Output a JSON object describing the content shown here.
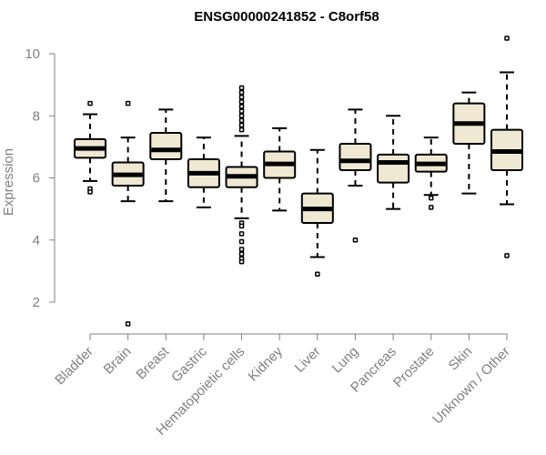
{
  "chart_data": {
    "type": "boxplot",
    "title": "ENSG00000241852 - C8orf58",
    "ylabel": "Expression",
    "xlabel": "",
    "ylim": [
      1,
      10.5
    ],
    "yticks": [
      2,
      4,
      6,
      8,
      10
    ],
    "box_fill": "#efe8d2",
    "categories": [
      "Bladder",
      "Brain",
      "Breast",
      "Gastric",
      "Hematopoietic cells",
      "Kidney",
      "Liver",
      "Lung",
      "Pancreas",
      "Prostate",
      "Skin",
      "Unknown / Other"
    ],
    "series": [
      {
        "category": "Bladder",
        "whisker_low": 5.9,
        "q1": 6.65,
        "median": 6.95,
        "q3": 7.25,
        "whisker_high": 8.05,
        "outliers": [
          8.4,
          5.65,
          5.55
        ]
      },
      {
        "category": "Brain",
        "whisker_low": 5.25,
        "q1": 5.75,
        "median": 6.1,
        "q3": 6.5,
        "whisker_high": 7.3,
        "outliers": [
          8.4,
          1.3
        ]
      },
      {
        "category": "Breast",
        "whisker_low": 5.25,
        "q1": 6.6,
        "median": 6.9,
        "q3": 7.45,
        "whisker_high": 8.2,
        "outliers": []
      },
      {
        "category": "Gastric",
        "whisker_low": 5.05,
        "q1": 5.7,
        "median": 6.15,
        "q3": 6.6,
        "whisker_high": 7.3,
        "outliers": []
      },
      {
        "category": "Hematopoietic cells",
        "whisker_low": 4.7,
        "q1": 5.7,
        "median": 6.05,
        "q3": 6.35,
        "whisker_high": 7.35,
        "outliers": [
          8.9,
          8.75,
          8.6,
          8.45,
          8.3,
          8.15,
          8.0,
          7.85,
          7.7,
          7.55,
          4.55,
          4.45,
          4.2,
          3.95,
          3.7,
          3.55,
          3.4,
          3.3
        ]
      },
      {
        "category": "Kidney",
        "whisker_low": 4.95,
        "q1": 6.0,
        "median": 6.45,
        "q3": 6.85,
        "whisker_high": 7.6,
        "outliers": []
      },
      {
        "category": "Liver",
        "whisker_low": 3.45,
        "q1": 4.55,
        "median": 5.0,
        "q3": 5.5,
        "whisker_high": 6.9,
        "outliers": [
          2.9
        ]
      },
      {
        "category": "Lung",
        "whisker_low": 5.75,
        "q1": 6.25,
        "median": 6.55,
        "q3": 7.1,
        "whisker_high": 8.2,
        "outliers": [
          4.0
        ]
      },
      {
        "category": "Pancreas",
        "whisker_low": 5.0,
        "q1": 5.85,
        "median": 6.5,
        "q3": 6.75,
        "whisker_high": 8.0,
        "outliers": []
      },
      {
        "category": "Prostate",
        "whisker_low": 5.45,
        "q1": 6.2,
        "median": 6.45,
        "q3": 6.75,
        "whisker_high": 7.3,
        "outliers": [
          5.35,
          5.05
        ]
      },
      {
        "category": "Skin",
        "whisker_low": 5.5,
        "q1": 7.1,
        "median": 7.75,
        "q3": 8.4,
        "whisker_high": 8.75,
        "outliers": []
      },
      {
        "category": "Unknown / Other",
        "whisker_low": 5.15,
        "q1": 6.25,
        "median": 6.85,
        "q3": 7.55,
        "whisker_high": 9.4,
        "outliers": [
          10.5,
          3.5
        ]
      }
    ]
  }
}
